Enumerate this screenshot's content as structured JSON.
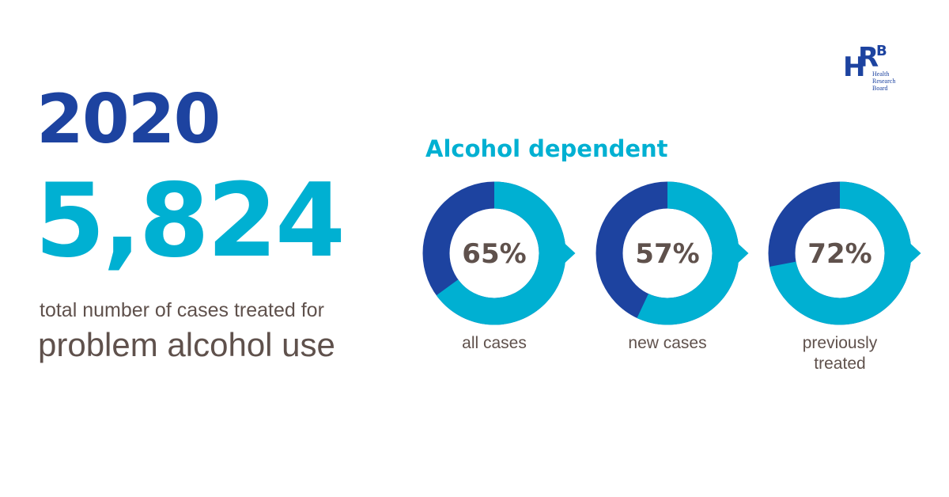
{
  "year": "2020",
  "total": "5,824",
  "caption": [
    "total number of cases treated for",
    "problem alcohol use"
  ],
  "heading": "Alcohol dependent",
  "logo": {
    "letters": [
      "H",
      "R",
      "B"
    ],
    "lines": [
      "Health",
      "Research",
      "Board"
    ]
  },
  "chart_data": [
    {
      "type": "donut",
      "label": "all cases",
      "value": 65,
      "value_label": "65%",
      "color": "#00b0d2",
      "rest_color": "#1d43a0"
    },
    {
      "type": "donut",
      "label": "new cases",
      "value": 57,
      "value_label": "57%",
      "color": "#00b0d2",
      "rest_color": "#1d43a0"
    },
    {
      "type": "donut",
      "label": "previously treated",
      "value": 72,
      "value_label": "72%",
      "color": "#00b0d2",
      "rest_color": "#1d43a0"
    }
  ]
}
